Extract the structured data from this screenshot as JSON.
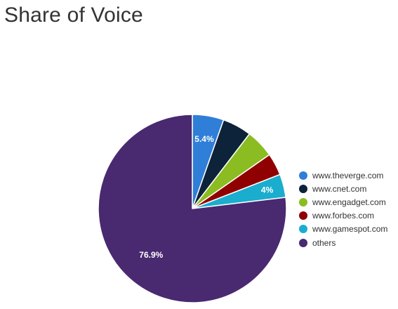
{
  "title": "Share of Voice",
  "chart_data": {
    "type": "pie",
    "title": "Share of Voice",
    "start_angle_deg": 0,
    "direction": "clockwise",
    "legend_position": "right",
    "slices": [
      {
        "name": "www.theverge.com",
        "value": 5.4,
        "color": "#2f7ed8",
        "label": "5.4%"
      },
      {
        "name": "www.cnet.com",
        "value": 5.0,
        "color": "#0d233a",
        "label": ""
      },
      {
        "name": "www.engadget.com",
        "value": 4.9,
        "color": "#8bbc21",
        "label": ""
      },
      {
        "name": "www.forbes.com",
        "value": 3.8,
        "color": "#910000",
        "label": ""
      },
      {
        "name": "www.gamespot.com",
        "value": 4.0,
        "color": "#1aadce",
        "label": "4%"
      },
      {
        "name": "others",
        "value": 76.9,
        "color": "#492970",
        "label": "76.9%"
      }
    ]
  }
}
